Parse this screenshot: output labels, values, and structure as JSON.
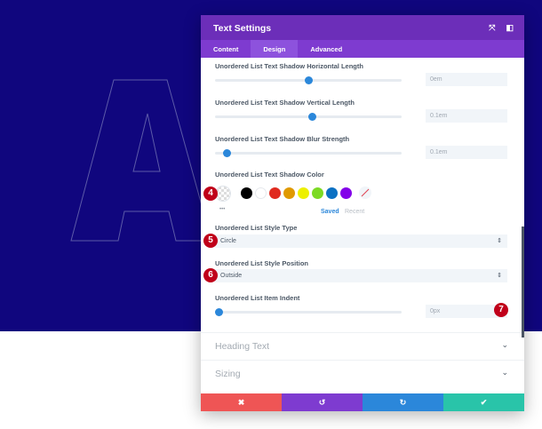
{
  "modal": {
    "title": "Text Settings",
    "tabs": [
      "Content",
      "Design",
      "Advanced"
    ],
    "active_tab": "Design"
  },
  "fields": {
    "h_len": {
      "label": "Unordered List Text Shadow Horizontal Length",
      "value": "0em",
      "slider_percent": 50
    },
    "v_len": {
      "label": "Unordered List Text Shadow Vertical Length",
      "value": "0.1em",
      "slider_percent": 52
    },
    "blur": {
      "label": "Unordered List Text Shadow Blur Strength",
      "value": "0.1em",
      "slider_percent": 6
    },
    "color": {
      "label": "Unordered List Text Shadow Color",
      "swatches": [
        "#000000",
        "#ffffff",
        "#e02b20",
        "#e09900",
        "#edf000",
        "#7cda24",
        "#0c71c3",
        "#8300e9"
      ],
      "saved": "Saved",
      "recent": "Recent",
      "more": "•••"
    },
    "style_type": {
      "label": "Unordered List Style Type",
      "value": "Circle"
    },
    "style_pos": {
      "label": "Unordered List Style Position",
      "value": "Outside"
    },
    "indent": {
      "label": "Unordered List Item Indent",
      "value": "0px",
      "slider_percent": 0
    }
  },
  "badges": [
    "4",
    "5",
    "6",
    "7"
  ],
  "sections": [
    "Heading Text",
    "Sizing"
  ],
  "footer": {
    "colors": [
      "#ef5555",
      "#7e3bd0",
      "#2b87da",
      "#29c4a9"
    ]
  },
  "background_letter": "A"
}
